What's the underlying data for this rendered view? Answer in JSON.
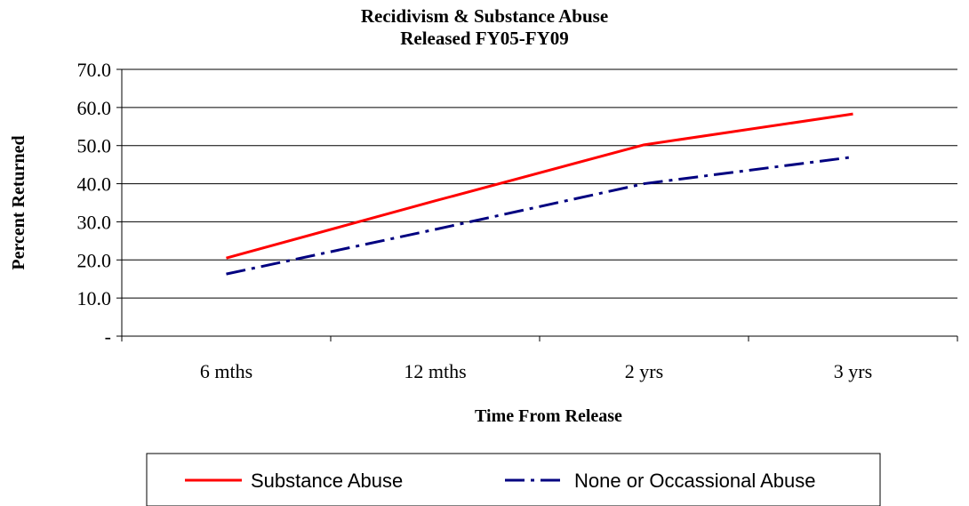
{
  "chart_data": {
    "type": "line",
    "title": "Recidivism & Substance Abuse",
    "subtitle": "Released FY05-FY09",
    "xlabel": "Time From Release",
    "ylabel": "Percent Returned",
    "categories": [
      "6 mths",
      "12 mths",
      "2 yrs",
      "3 yrs"
    ],
    "ylim": [
      0,
      70
    ],
    "yticks": [
      0,
      10,
      20,
      30,
      40,
      50,
      60,
      70
    ],
    "ytick_labels": [
      "-",
      "10.0",
      "20.0",
      "30.0",
      "40.0",
      "50.0",
      "60.0",
      "70.0"
    ],
    "grid": true,
    "legend_position": "bottom",
    "series": [
      {
        "name": "Substance Abuse",
        "values": [
          20.5,
          35.5,
          50.2,
          58.3
        ],
        "color": "#ff0000",
        "style": "solid"
      },
      {
        "name": "None or Occassional Abuse",
        "values": [
          16.3,
          28.0,
          40.0,
          47.0
        ],
        "color": "#000080",
        "style": "dash-dot"
      }
    ]
  }
}
